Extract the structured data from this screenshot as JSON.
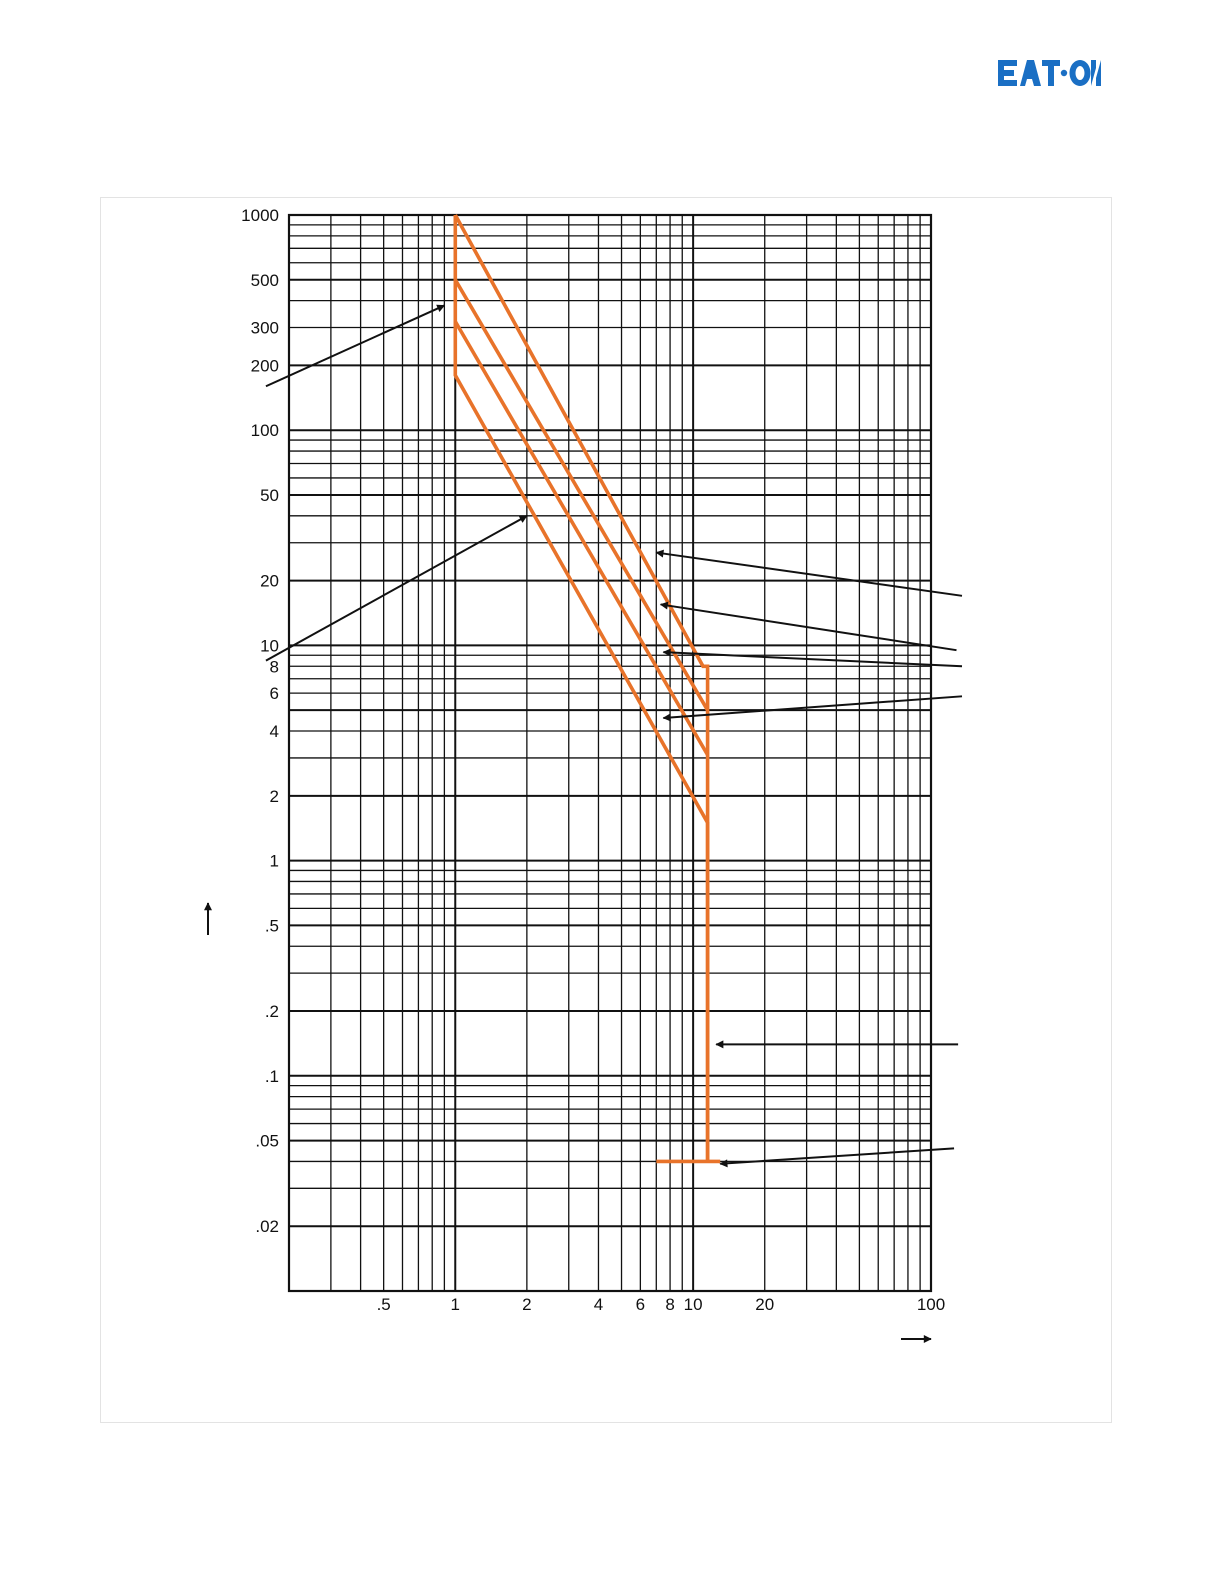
{
  "brand": {
    "name": "EATON",
    "color": "#1A6FC4"
  },
  "chart_data": {
    "type": "line",
    "title": "",
    "xlabel": "",
    "ylabel": "",
    "x_scale": "log",
    "y_scale": "log",
    "xlim": [
      0.2,
      100
    ],
    "ylim": [
      0.01,
      1000
    ],
    "grid": true,
    "x_tick_labels": [
      {
        "value": 0.5,
        "label": ".5"
      },
      {
        "value": 1,
        "label": "1"
      },
      {
        "value": 2,
        "label": "2"
      },
      {
        "value": 4,
        "label": "4"
      },
      {
        "value": 6,
        "label": "6"
      },
      {
        "value": 8,
        "label": "8"
      },
      {
        "value": 10,
        "label": "10"
      },
      {
        "value": 20,
        "label": "20"
      },
      {
        "value": 100,
        "label": "100"
      }
    ],
    "y_tick_labels": [
      {
        "value": 1000,
        "label": "1000"
      },
      {
        "value": 500,
        "label": "500"
      },
      {
        "value": 300,
        "label": "300"
      },
      {
        "value": 200,
        "label": "200"
      },
      {
        "value": 100,
        "label": "100"
      },
      {
        "value": 50,
        "label": "50"
      },
      {
        "value": 20,
        "label": "20"
      },
      {
        "value": 10,
        "label": "10"
      },
      {
        "value": 8,
        "label": "8"
      },
      {
        "value": 6,
        "label": "6"
      },
      {
        "value": 4,
        "label": "4"
      },
      {
        "value": 2,
        "label": "2"
      },
      {
        "value": 1,
        "label": "1"
      },
      {
        "value": 0.5,
        "label": ".5"
      },
      {
        "value": 0.2,
        "label": ".2"
      },
      {
        "value": 0.1,
        "label": ".1"
      },
      {
        "value": 0.05,
        "label": ".05"
      },
      {
        "value": 0.02,
        "label": ".02"
      }
    ],
    "curve_color": "#E8732A",
    "series": [
      {
        "x": [
          1,
          1,
          11.5,
          11.5,
          11.5,
          11.5
        ],
        "y": [
          1000,
          180,
          1.5,
          0.04,
          0.04,
          0.04
        ]
      },
      {
        "x": [
          1,
          11,
          11.5,
          11.5
        ],
        "y": [
          1000,
          8,
          8,
          0.04
        ]
      },
      {
        "x": [
          1,
          11.5
        ],
        "y": [
          500,
          5
        ]
      },
      {
        "x": [
          1,
          11.5
        ],
        "y": [
          320,
          3.1
        ]
      },
      {
        "x": [
          7,
          13
        ],
        "y": [
          0.04,
          0.04
        ]
      }
    ],
    "annotation_arrows": [
      {
        "from": [
          0.16,
          160
        ],
        "to": [
          0.9,
          380
        ]
      },
      {
        "from": [
          0.16,
          8.5
        ],
        "to": [
          2,
          40
        ]
      },
      {
        "from": [
          135,
          17
        ],
        "to": [
          7,
          27
        ]
      },
      {
        "from": [
          128,
          9.5
        ],
        "to": [
          7.3,
          15.5
        ]
      },
      {
        "from": [
          135,
          8
        ],
        "to": [
          7.5,
          9.3
        ]
      },
      {
        "from": [
          135,
          5.8
        ],
        "to": [
          7.5,
          4.6
        ]
      },
      {
        "from": [
          130,
          0.14
        ],
        "to": [
          12.5,
          0.14
        ]
      },
      {
        "from": [
          125,
          0.046
        ],
        "to": [
          13,
          0.039
        ]
      }
    ],
    "axis_direction_arrows": [
      {
        "axis": "y",
        "direction": "up"
      },
      {
        "axis": "x",
        "direction": "right"
      }
    ]
  }
}
